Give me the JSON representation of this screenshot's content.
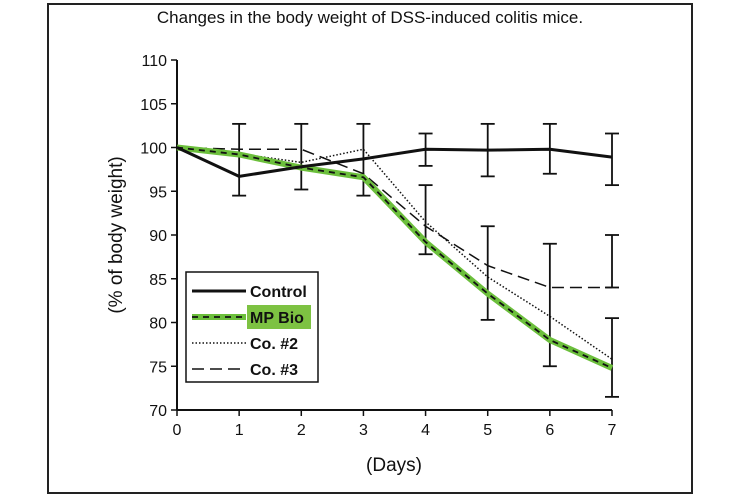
{
  "chart_data": {
    "type": "line",
    "title": "Changes in the body weight of DSS-induced colitis mice.",
    "xlabel": "(Days)",
    "ylabel": "(% of body weight)",
    "x": [
      0,
      1,
      2,
      3,
      4,
      5,
      6,
      7
    ],
    "x_ticks": [
      "0",
      "1",
      "2",
      "3",
      "4",
      "5",
      "6",
      "7"
    ],
    "y_ticks": [
      "70",
      "75",
      "80",
      "85",
      "90",
      "95",
      "100",
      "105",
      "110"
    ],
    "xlim": [
      0,
      7
    ],
    "ylim": [
      70,
      110
    ],
    "grid": false,
    "legend_position": "bottom-left",
    "series": [
      {
        "name": "Control",
        "values": [
          100,
          96.7,
          97.8,
          98.7,
          99.8,
          99.7,
          99.8,
          98.9
        ],
        "style": "solid",
        "color": "#111111"
      },
      {
        "name": "MP Bio",
        "values": [
          100,
          99.2,
          97.7,
          96.6,
          89.2,
          83.3,
          78.0,
          74.8
        ],
        "style": "green-dashed",
        "color": "#6cbf3c",
        "highlight": "#7dc242"
      },
      {
        "name": "Co. #2",
        "values": [
          100,
          99.3,
          98.3,
          99.8,
          91.5,
          85.2,
          80.7,
          75.8
        ],
        "style": "dotted",
        "color": "#111111"
      },
      {
        "name": "Co. #3",
        "values": [
          100,
          99.8,
          99.8,
          97.0,
          91.0,
          86.5,
          84.0,
          84.0
        ],
        "style": "dashed",
        "color": "#111111"
      }
    ],
    "error_bars": [
      {
        "x": 1,
        "low": 94.5,
        "high": 102.7
      },
      {
        "x": 2,
        "low": 95.2,
        "high": 102.7
      },
      {
        "x": 3,
        "low": 94.5,
        "high": 102.7
      },
      {
        "x": 4,
        "low": 87.8,
        "high": 95.7
      },
      {
        "x": 4,
        "low": 97.9,
        "high": 101.6
      },
      {
        "x": 5,
        "low": 80.3,
        "high": 91.0
      },
      {
        "x": 5,
        "low": 96.7,
        "high": 102.7
      },
      {
        "x": 6,
        "low": 75.0,
        "high": 89.0
      },
      {
        "x": 6,
        "low": 97.0,
        "high": 102.7
      },
      {
        "x": 7,
        "low": 71.5,
        "high": 80.5
      },
      {
        "x": 7,
        "low": 95.7,
        "high": 101.6
      },
      {
        "x": 7,
        "low": 84.0,
        "high": 90.0
      }
    ]
  }
}
